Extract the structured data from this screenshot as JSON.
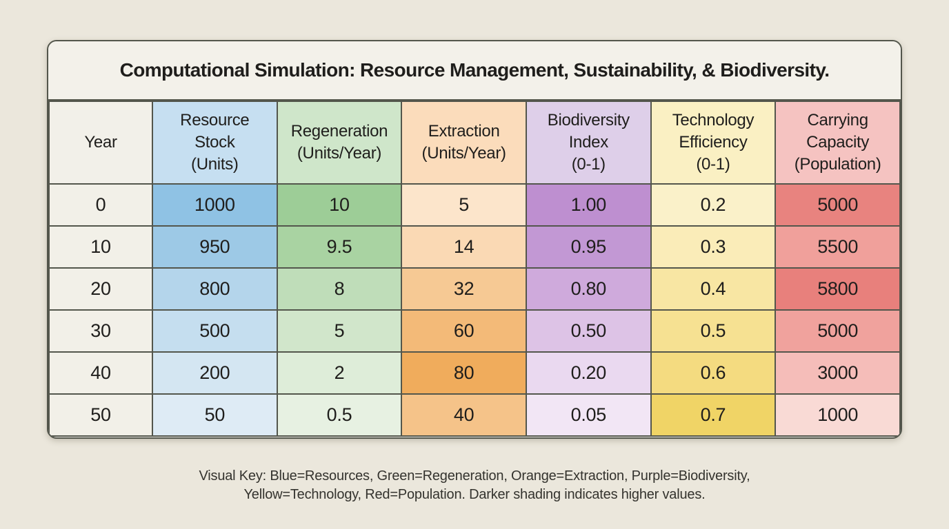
{
  "title": "Computational Simulation: Resource Management, Sustainability, & Biodiversity.",
  "colors": {
    "page_background": "#EBE7DC",
    "card_background": "#F3F1EA",
    "grid_line": "#53564C",
    "text": "#1F1E1C"
  },
  "table": {
    "columns": [
      {
        "id": "year",
        "label": "Year",
        "header_bg": "#F2F0E9"
      },
      {
        "id": "resource-stock",
        "label": "Resource\nStock\n(Units)",
        "header_bg": "#C6DFF1"
      },
      {
        "id": "regeneration",
        "label": "Regeneration\n(Units/Year)",
        "header_bg": "#CFE6CA"
      },
      {
        "id": "extraction",
        "label": "Extraction\n(Units/Year)",
        "header_bg": "#FBDCBB"
      },
      {
        "id": "biodiversity-index",
        "label": "Biodiversity\nIndex\n(0-1)",
        "header_bg": "#DECFE9"
      },
      {
        "id": "technology-efficiency",
        "label": "Technology\nEfficiency\n(0-1)",
        "header_bg": "#FAF0C3"
      },
      {
        "id": "carrying-capacity",
        "label": "Carrying\nCapacity\n(Population)",
        "header_bg": "#F5C3C1"
      }
    ],
    "rows": [
      {
        "cells": [
          {
            "text": "0",
            "bg": "#F2F0E8"
          },
          {
            "text": "1000",
            "bg": "#8FC2E4"
          },
          {
            "text": "10",
            "bg": "#9DCD97"
          },
          {
            "text": "5",
            "bg": "#FCE5CB"
          },
          {
            "text": "1.00",
            "bg": "#BE8FD0"
          },
          {
            "text": "0.2",
            "bg": "#FAF1C9"
          },
          {
            "text": "5000",
            "bg": "#E8837F"
          }
        ]
      },
      {
        "cells": [
          {
            "text": "10",
            "bg": "#F2F0E8"
          },
          {
            "text": "950",
            "bg": "#9DC9E6"
          },
          {
            "text": "9.5",
            "bg": "#A9D3A2"
          },
          {
            "text": "14",
            "bg": "#FAD9B4"
          },
          {
            "text": "0.95",
            "bg": "#C298D4"
          },
          {
            "text": "0.3",
            "bg": "#FAECB8"
          },
          {
            "text": "5500",
            "bg": "#F0A09B"
          }
        ]
      },
      {
        "cells": [
          {
            "text": "20",
            "bg": "#F2F0E8"
          },
          {
            "text": "800",
            "bg": "#B4D5EB"
          },
          {
            "text": "8",
            "bg": "#BFDDB9"
          },
          {
            "text": "32",
            "bg": "#F6C994"
          },
          {
            "text": "0.80",
            "bg": "#CFAADC"
          },
          {
            "text": "0.4",
            "bg": "#F8E6A3"
          },
          {
            "text": "5800",
            "bg": "#E8807C"
          }
        ]
      },
      {
        "cells": [
          {
            "text": "30",
            "bg": "#F2F0E8"
          },
          {
            "text": "500",
            "bg": "#C5DEEF"
          },
          {
            "text": "5",
            "bg": "#D1E6CB"
          },
          {
            "text": "60",
            "bg": "#F3BA78"
          },
          {
            "text": "0.50",
            "bg": "#DDC3E6"
          },
          {
            "text": "0.5",
            "bg": "#F6E192"
          },
          {
            "text": "5000",
            "bg": "#F0A29D"
          }
        ]
      },
      {
        "cells": [
          {
            "text": "40",
            "bg": "#F2F0E8"
          },
          {
            "text": "200",
            "bg": "#D4E6F2"
          },
          {
            "text": "2",
            "bg": "#DEEDD9"
          },
          {
            "text": "80",
            "bg": "#F0AC5C"
          },
          {
            "text": "0.20",
            "bg": "#EAD9F0"
          },
          {
            "text": "0.6",
            "bg": "#F4DB80"
          },
          {
            "text": "3000",
            "bg": "#F5BDB9"
          }
        ]
      },
      {
        "cells": [
          {
            "text": "50",
            "bg": "#F2F0E8"
          },
          {
            "text": "50",
            "bg": "#DEEBF5"
          },
          {
            "text": "0.5",
            "bg": "#E7F1E2"
          },
          {
            "text": "40",
            "bg": "#F5C389"
          },
          {
            "text": "0.05",
            "bg": "#F2E6F5"
          },
          {
            "text": "0.7",
            "bg": "#F0D466"
          },
          {
            "text": "1000",
            "bg": "#F9DAD5"
          }
        ]
      }
    ]
  },
  "footer": {
    "line1": "Visual Key: Blue=Resources, Green=Regeneration, Orange=Extraction, Purple=Biodiversity,",
    "line2": "Yellow=Technology, Red=Population. Darker shading indicates higher values."
  },
  "chart_data": {
    "type": "table",
    "title": "Computational Simulation: Resource Management, Sustainability, & Biodiversity.",
    "columns": [
      "Year",
      "Resource Stock (Units)",
      "Regeneration (Units/Year)",
      "Extraction (Units/Year)",
      "Biodiversity Index (0-1)",
      "Technology Efficiency (0-1)",
      "Carrying Capacity (Population)"
    ],
    "rows": [
      [
        0,
        1000,
        10,
        5,
        1.0,
        0.2,
        5000
      ],
      [
        10,
        950,
        9.5,
        14,
        0.95,
        0.3,
        5500
      ],
      [
        20,
        800,
        8,
        32,
        0.8,
        0.4,
        5800
      ],
      [
        30,
        500,
        5,
        60,
        0.5,
        0.5,
        5000
      ],
      [
        40,
        200,
        2,
        80,
        0.2,
        0.6,
        3000
      ],
      [
        50,
        50,
        0.5,
        40,
        0.05,
        0.7,
        1000
      ]
    ],
    "color_key": {
      "blue": "Resources",
      "green": "Regeneration",
      "orange": "Extraction",
      "purple": "Biodiversity",
      "yellow": "Technology",
      "red": "Population"
    },
    "note": "Darker shading indicates higher values."
  }
}
